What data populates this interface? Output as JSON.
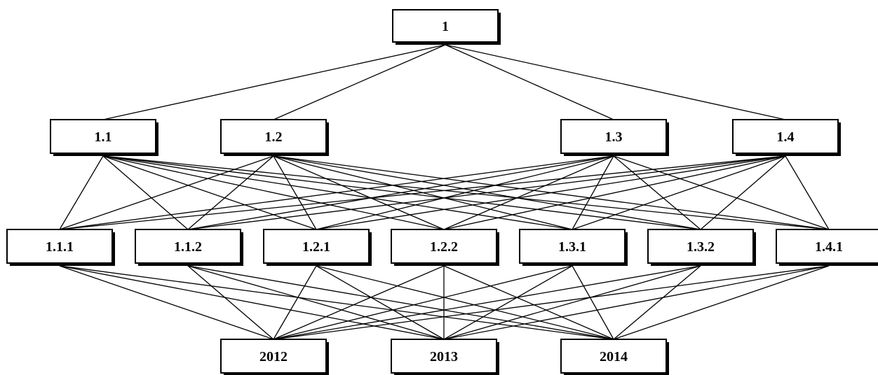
{
  "diagram": {
    "colors": {
      "stroke": "#000000",
      "fill": "#ffffff",
      "text": "#000000"
    },
    "levels": [
      {
        "id": "goal",
        "nodes": [
          {
            "id": "n1",
            "label": "1"
          }
        ]
      },
      {
        "id": "criteria",
        "nodes": [
          {
            "id": "n1_1",
            "label": "1.1"
          },
          {
            "id": "n1_2",
            "label": "1.2"
          },
          {
            "id": "n1_3",
            "label": "1.3"
          },
          {
            "id": "n1_4",
            "label": "1.4"
          }
        ]
      },
      {
        "id": "subcriteria",
        "nodes": [
          {
            "id": "n1_1_1",
            "label": "1.1.1"
          },
          {
            "id": "n1_1_2",
            "label": "1.1.2"
          },
          {
            "id": "n1_2_1",
            "label": "1.2.1"
          },
          {
            "id": "n1_2_2",
            "label": "1.2.2"
          },
          {
            "id": "n1_3_1",
            "label": "1.3.1"
          },
          {
            "id": "n1_3_2",
            "label": "1.3.2"
          },
          {
            "id": "n1_4_1",
            "label": "1.4.1"
          }
        ]
      },
      {
        "id": "alternatives",
        "nodes": [
          {
            "id": "n2012",
            "label": "2012"
          },
          {
            "id": "n2013",
            "label": "2013"
          },
          {
            "id": "n2014",
            "label": "2014"
          }
        ]
      }
    ]
  }
}
